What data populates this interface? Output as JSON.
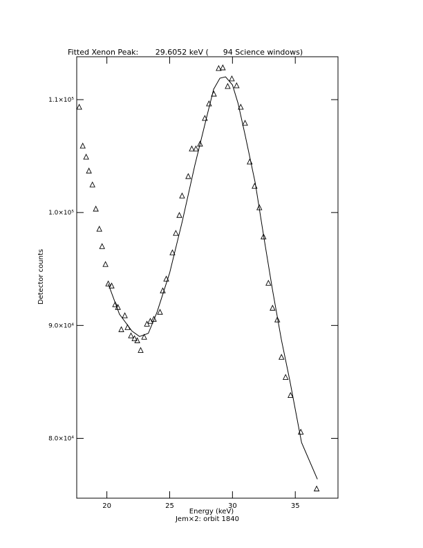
{
  "chart_data": {
    "type": "scatter",
    "title": "Fitted Xenon Peak:       29.6052 keV (      94 Science windows)",
    "x_label": "Energy (keV)",
    "subtitle": "Jem×2: orbit 1840",
    "y_label": "Detector counts",
    "xlim": [
      17.6,
      38.4
    ],
    "xticks": [
      20,
      25,
      30,
      35
    ],
    "ylim": [
      74700,
      113800
    ],
    "yticks": [
      {
        "value": 80000,
        "label": "8.0×10⁴"
      },
      {
        "value": 90000,
        "label": "9.0×10⁴"
      },
      {
        "value": 100000,
        "label": "1.0×10⁵"
      },
      {
        "value": 110000,
        "label": "1.1×10⁵"
      }
    ],
    "series": [
      {
        "color": "#000000",
        "marker": "triangle",
        "x": [
          17.8,
          18.08,
          18.35,
          18.57,
          18.85,
          19.12,
          19.4,
          19.62,
          19.89,
          20.11,
          20.38,
          20.66,
          20.88,
          21.15,
          21.43,
          21.65,
          21.92,
          22.2,
          22.42,
          22.69,
          22.97,
          23.19,
          23.46,
          23.74,
          24.23,
          24.45,
          24.73,
          25.22,
          25.49,
          25.77,
          25.99,
          26.48,
          26.76,
          27.09,
          27.42,
          27.8,
          28.13,
          28.52,
          28.9,
          29.23,
          29.62,
          29.95,
          30.33,
          30.66,
          31.0,
          31.37,
          31.76,
          32.14,
          32.47,
          32.86,
          33.19,
          33.57,
          33.9,
          34.23,
          34.62,
          35.44,
          36.7
        ],
        "values": [
          109330,
          105890,
          104910,
          103680,
          102450,
          100310,
          98530,
          96990,
          95400,
          93680,
          93500,
          91840,
          91600,
          89630,
          90860,
          89820,
          89080,
          88830,
          88650,
          87790,
          88960,
          90120,
          90370,
          90550,
          91170,
          93070,
          94110,
          96440,
          98160,
          99750,
          101470,
          103190,
          105640,
          105640,
          106070,
          108340,
          109630,
          110490,
          112760,
          112820,
          111170,
          111840,
          111230,
          109330,
          107910,
          104480,
          102330,
          100430,
          97850,
          93740,
          91530,
          90490,
          87180,
          85400,
          83800,
          80550,
          75520
        ]
      },
      {
        "color": "#000000",
        "marker": "line",
        "x": [
          20.11,
          21.0,
          22.0,
          22.6,
          23.3,
          24.0,
          25.0,
          26.0,
          27.0,
          28.0,
          28.5,
          29.0,
          29.45,
          30.0,
          30.44,
          31.0,
          31.81,
          32.5,
          33.19,
          33.9,
          34.56,
          35.5,
          36.76
        ],
        "values": [
          93680,
          91000,
          89500,
          89020,
          89300,
          91200,
          94660,
          99200,
          104170,
          108700,
          110920,
          111900,
          112020,
          111300,
          109690,
          106900,
          102640,
          97800,
          93130,
          88700,
          85150,
          79630,
          76380
        ]
      }
    ]
  }
}
